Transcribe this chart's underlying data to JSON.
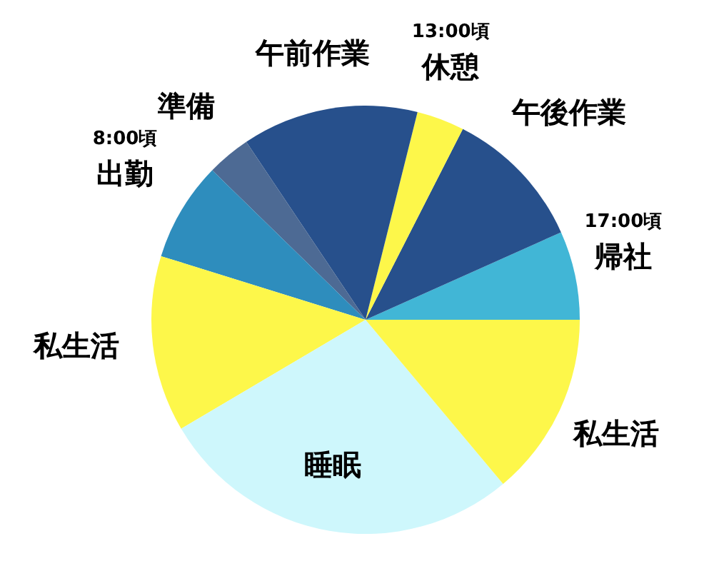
{
  "chart_data": {
    "type": "pie",
    "categories": [
      "帰社",
      "午後作業",
      "休憩",
      "午前作業",
      "準備",
      "出勤",
      "私生活",
      "睡眠",
      "私生活"
    ],
    "values": [
      6.7,
      10.8,
      3.6,
      13.3,
      3.3,
      7.5,
      13.3,
      27.6,
      13.9
    ],
    "colors": [
      "#41b6d6",
      "#27508c",
      "#fdf74a",
      "#27508c",
      "#4d6a94",
      "#2e8dbd",
      "#fdf74a",
      "#cef7fc",
      "#fdf74a"
    ],
    "annotations": [
      {
        "text": "8:00頃",
        "x": "出勤"
      },
      {
        "text": "13:00頃",
        "x": "休憩"
      },
      {
        "text": "17:00頃",
        "x": "帰社"
      }
    ],
    "legend": false
  }
}
